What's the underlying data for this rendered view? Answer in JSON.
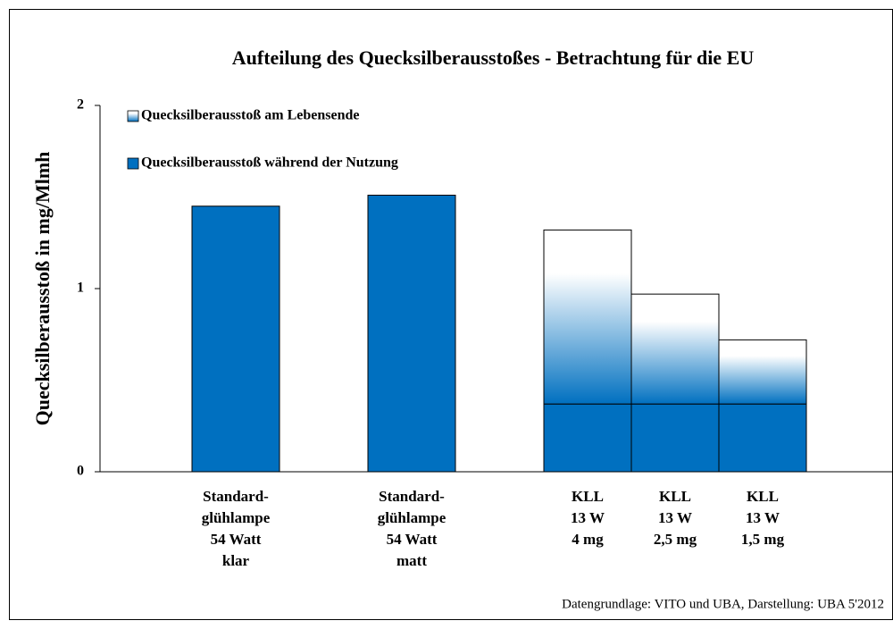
{
  "chart_data": {
    "type": "stacked-bar",
    "title": "Aufteilung des Quecksilberausstoßes  -  Betrachtung für die EU",
    "y_label": "Quecksilberausstoß in mg/Mlmh",
    "categories": [
      [
        "Standard-",
        "glühlampe",
        "54 Watt",
        "klar"
      ],
      [
        "Standard-",
        "glühlampe",
        "54 Watt",
        "matt"
      ],
      [
        "KLL",
        "13 W",
        "4 mg"
      ],
      [
        "KLL",
        "13 W",
        "2,5 mg"
      ],
      [
        "KLL",
        "13 W",
        "1,5 mg"
      ]
    ],
    "series": [
      {
        "name": "Quecksilberausstoß während der Nutzung",
        "color": "#0070c0",
        "values": [
          1.45,
          1.51,
          0.37,
          0.37,
          0.37
        ]
      },
      {
        "name": "Quecksilberausstoß am Lebensende",
        "color": "#0070c0",
        "gradient": true,
        "values": [
          null,
          null,
          0.95,
          0.6,
          0.35
        ]
      }
    ],
    "ylim": [
      0,
      2
    ],
    "yticks": [
      0,
      1,
      2
    ],
    "grid": false,
    "source": "Datengrundlage: VITO und UBA, Darstellung: UBA 5'2012"
  }
}
